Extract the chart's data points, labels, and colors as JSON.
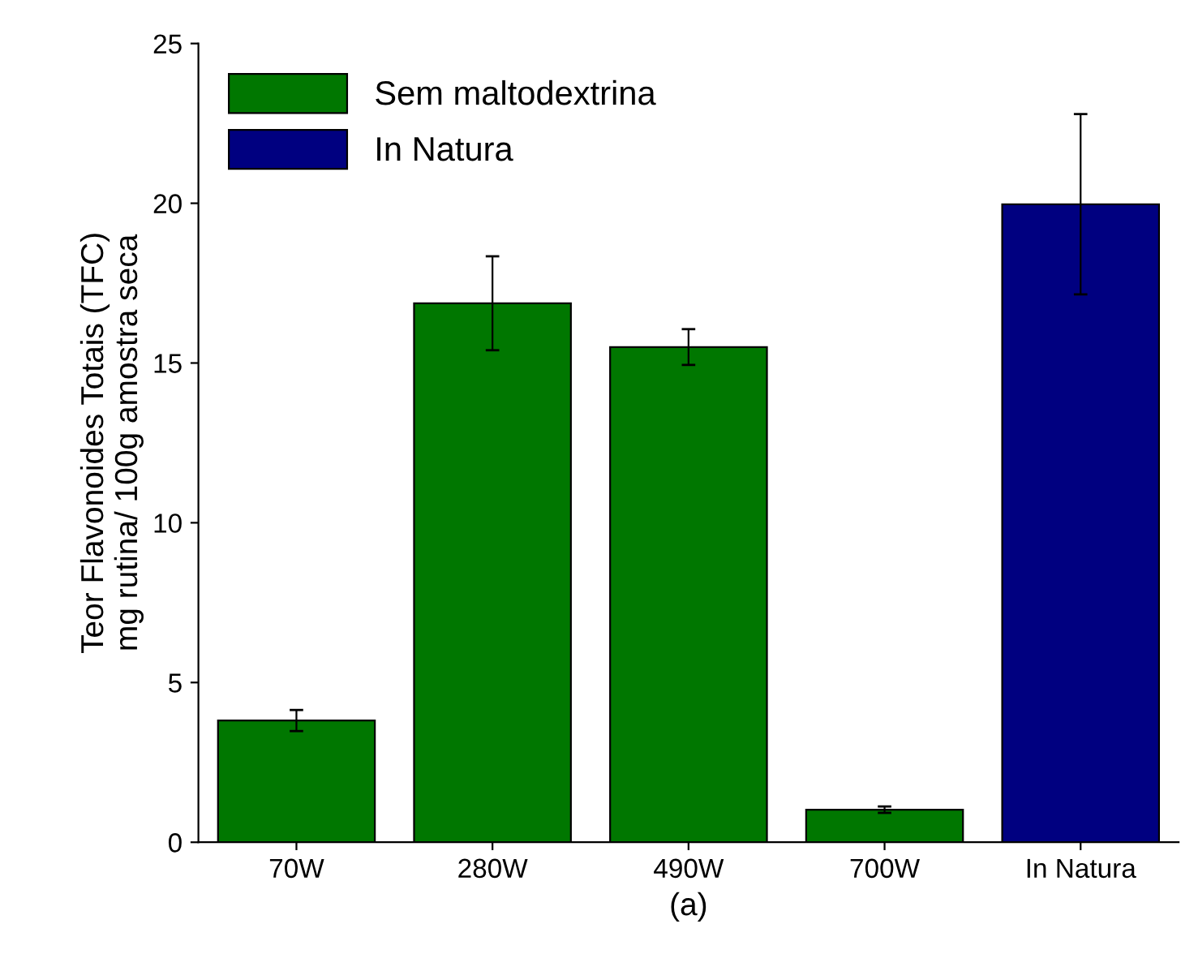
{
  "chart_data": {
    "type": "bar",
    "xlabel": "(a)",
    "ylabel": "Teor Flavonoides Totais (TFC)\nmg rutina/ 100g amostra seca",
    "categories": [
      "70W",
      "280W",
      "490W",
      "700W",
      "In Natura"
    ],
    "series": [
      {
        "name": "Sem maltodextrina",
        "color": "#007700",
        "values": [
          3.81,
          16.87,
          15.5,
          1.02,
          null
        ],
        "errors": [
          0.33,
          1.47,
          0.56,
          0.1,
          null
        ]
      },
      {
        "name": "In Natura",
        "color": "#000080",
        "values": [
          null,
          null,
          null,
          null,
          19.97
        ],
        "errors": [
          null,
          null,
          null,
          null,
          2.82
        ]
      }
    ],
    "ylim": [
      0,
      25
    ],
    "yticks": [
      0,
      5,
      10,
      15,
      20,
      25
    ],
    "grid": false,
    "legend": "top left"
  }
}
